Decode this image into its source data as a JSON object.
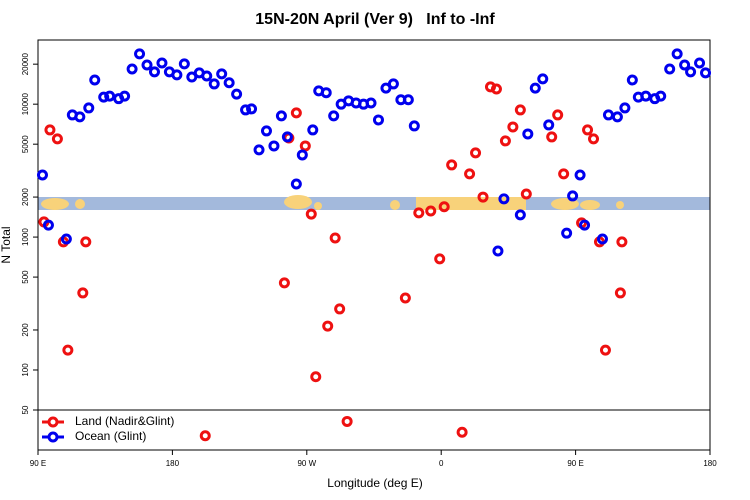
{
  "chart_data": {
    "type": "scatter",
    "title": "15N-20N April (Ver 9)   Inf to -Inf",
    "xlabel": "Longitude (deg E)",
    "ylabel": "N Total",
    "log_y": true,
    "legend": "bottom-left",
    "xlim": [
      90,
      540
    ],
    "ylim": [
      25,
      30400
    ],
    "xticks": [
      {
        "value": 90,
        "label": "90 E"
      },
      180,
      {
        "value": 270,
        "label": "90 W"
      },
      {
        "value": 360,
        "label": "0"
      },
      {
        "value": 450,
        "label": "90 E"
      },
      {
        "value": 540,
        "label": "180"
      }
    ],
    "yticks": [
      50,
      100,
      200,
      500,
      1000,
      2000,
      5000,
      10000,
      20000
    ],
    "series": [
      {
        "name": "Land (Nadir&Glint)",
        "color": "#ee1111",
        "x": [
          94,
          98,
          103,
          107,
          110,
          120,
          122,
          202,
          255,
          258,
          263,
          269,
          273,
          276,
          284,
          289,
          292,
          297,
          336,
          345,
          353,
          362,
          359,
          367,
          379,
          374,
          383,
          388,
          393,
          397,
          403,
          408,
          413,
          417,
          434,
          438,
          442,
          454,
          458,
          462,
          466,
          470,
          480,
          481
        ],
        "values": [
          1300,
          6400,
          5480,
          920,
          141,
          380,
          920,
          32,
          452,
          5570,
          8600,
          4850,
          1490,
          89,
          214,
          985,
          288,
          41,
          348,
          1520,
          1570,
          1690,
          685,
          3490,
          2990,
          34,
          4300,
          2000,
          13500,
          13000,
          5290,
          6740,
          9050,
          2110,
          5670,
          8300,
          2990,
          1280,
          6400,
          5480,
          920,
          141,
          380,
          920
        ]
      },
      {
        "name": "Ocean (Glint)",
        "color": "#0000ee",
        "x": [
          93,
          97,
          109,
          113,
          118,
          124,
          128,
          134,
          138,
          144,
          148,
          153,
          158,
          163,
          168,
          173,
          178,
          183,
          188,
          193,
          198,
          203,
          208,
          213,
          218,
          223,
          229,
          233,
          238,
          243,
          248,
          253,
          257,
          263,
          267,
          274,
          278,
          283,
          288,
          293,
          298,
          303,
          308,
          313,
          318,
          323,
          328,
          333,
          338,
          342,
          398,
          402,
          413,
          418,
          423,
          428,
          432,
          444,
          448,
          453,
          456,
          468,
          472,
          478,
          483,
          488,
          492,
          497,
          503,
          507,
          513,
          518,
          523,
          527,
          533,
          537
        ],
        "values": [
          2930,
          1230,
          968,
          8300,
          8020,
          9370,
          15200,
          11300,
          11500,
          11000,
          11500,
          18400,
          23900,
          19700,
          17500,
          20400,
          17500,
          16600,
          20100,
          16000,
          17200,
          16300,
          14200,
          16900,
          14500,
          11900,
          9050,
          9210,
          4530,
          6290,
          4850,
          8160,
          5670,
          2510,
          4150,
          6400,
          12600,
          12200,
          8160,
          10000,
          10600,
          10200,
          10000,
          10200,
          7610,
          13200,
          14200,
          10800,
          10800,
          6860,
          786,
          1940,
          1470,
          5970,
          13200,
          15500,
          6980,
          1070,
          2040,
          2930,
          1230,
          968,
          8300,
          8020,
          9370,
          15200,
          11300,
          11500,
          11000,
          11500,
          18400,
          23900,
          19700,
          17500,
          20400,
          17200
        ]
      }
    ]
  }
}
